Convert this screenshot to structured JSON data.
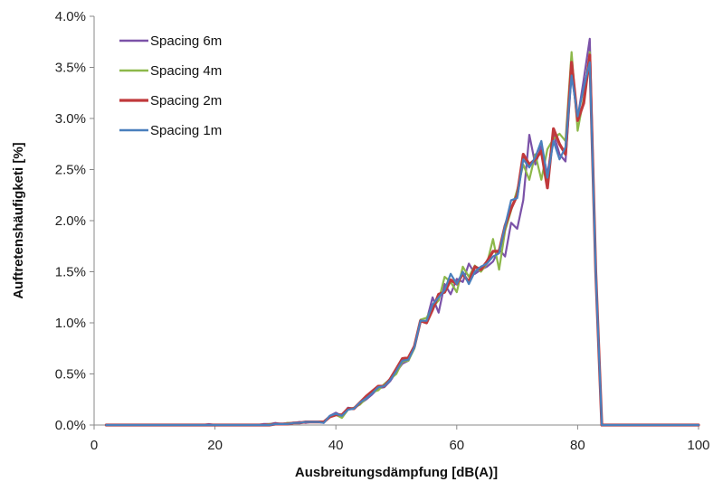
{
  "chart_data": {
    "type": "line",
    "title": "",
    "xlabel": "Ausbreitungsdämpfung [dB(A)]",
    "ylabel": "Auftretenshäufigketi [%]",
    "xlim": [
      0,
      100
    ],
    "ylim": [
      0,
      4.0
    ],
    "x_ticks": [
      0,
      20,
      40,
      60,
      80,
      100
    ],
    "y_ticks": [
      0,
      0.5,
      1.0,
      1.5,
      2.0,
      2.5,
      3.0,
      3.5,
      4.0
    ],
    "y_tick_labels": [
      "0.0%",
      "0.5%",
      "1.0%",
      "1.5%",
      "2.0%",
      "2.5%",
      "3.0%",
      "3.5%",
      "4.0%"
    ],
    "grid": false,
    "legend": "top-left",
    "x": [
      2,
      3,
      4,
      5,
      6,
      7,
      8,
      9,
      10,
      11,
      12,
      13,
      14,
      15,
      16,
      17,
      18,
      19,
      20,
      21,
      22,
      23,
      24,
      25,
      26,
      27,
      28,
      29,
      30,
      31,
      32,
      33,
      34,
      35,
      36,
      37,
      38,
      39,
      40,
      41,
      42,
      43,
      44,
      45,
      46,
      47,
      48,
      49,
      50,
      51,
      52,
      53,
      54,
      55,
      56,
      57,
      58,
      59,
      60,
      61,
      62,
      63,
      64,
      65,
      66,
      67,
      68,
      69,
      70,
      71,
      72,
      73,
      74,
      75,
      76,
      77,
      78,
      79,
      80,
      81,
      82,
      83,
      84,
      85,
      86,
      87,
      88,
      89,
      90,
      91,
      92,
      93,
      94,
      95,
      96,
      97,
      98,
      99,
      100
    ],
    "series": [
      {
        "name": "Spacing 6m",
        "color": "#7b52a8",
        "values": [
          0,
          0,
          0,
          0,
          0,
          0,
          0,
          0,
          0,
          0,
          0,
          0,
          0,
          0,
          0,
          0,
          0,
          0.01,
          0,
          0,
          0,
          0,
          0,
          0,
          0,
          0,
          0.01,
          0.01,
          0.02,
          0.01,
          0.02,
          0.02,
          0.03,
          0.02,
          0.03,
          0.03,
          0.02,
          0.09,
          0.12,
          0.09,
          0.17,
          0.16,
          0.21,
          0.25,
          0.3,
          0.36,
          0.37,
          0.43,
          0.52,
          0.6,
          0.63,
          0.78,
          1.01,
          1.02,
          1.25,
          1.1,
          1.38,
          1.28,
          1.43,
          1.4,
          1.58,
          1.48,
          1.52,
          1.55,
          1.6,
          1.72,
          1.65,
          1.98,
          1.92,
          2.2,
          2.84,
          2.55,
          2.73,
          2.45,
          2.85,
          2.65,
          2.58,
          3.45,
          3.0,
          3.38,
          3.78,
          1.5,
          0,
          0,
          0,
          0,
          0,
          0,
          0,
          0,
          0,
          0,
          0,
          0,
          0,
          0,
          0,
          0,
          0
        ]
      },
      {
        "name": "Spacing 4m",
        "color": "#8db84a",
        "values": [
          0,
          0,
          0,
          0,
          0,
          0,
          0,
          0,
          0,
          0,
          0,
          0,
          0,
          0,
          0,
          0,
          0,
          0,
          0,
          0,
          0,
          0,
          0,
          0,
          0,
          0,
          0,
          0.01,
          0.01,
          0.01,
          0.02,
          0.02,
          0.02,
          0.03,
          0.03,
          0.03,
          0.03,
          0.08,
          0.1,
          0.07,
          0.15,
          0.17,
          0.2,
          0.26,
          0.32,
          0.34,
          0.4,
          0.45,
          0.5,
          0.62,
          0.63,
          0.75,
          1.03,
          1.05,
          1.15,
          1.22,
          1.45,
          1.4,
          1.3,
          1.55,
          1.45,
          1.56,
          1.5,
          1.58,
          1.82,
          1.52,
          1.9,
          2.1,
          2.3,
          2.55,
          2.4,
          2.65,
          2.4,
          2.7,
          2.8,
          2.85,
          2.78,
          3.65,
          2.88,
          3.2,
          3.65,
          1.5,
          0,
          0,
          0,
          0,
          0,
          0,
          0,
          0,
          0,
          0,
          0,
          0,
          0,
          0,
          0,
          0,
          0
        ]
      },
      {
        "name": "Spacing 2m",
        "color": "#c0393b",
        "values": [
          0,
          0,
          0,
          0,
          0,
          0,
          0,
          0,
          0,
          0,
          0,
          0,
          0,
          0,
          0,
          0,
          0,
          0,
          0,
          0,
          0,
          0,
          0,
          0,
          0,
          0,
          0,
          0,
          0.01,
          0.01,
          0.01,
          0.02,
          0.02,
          0.03,
          0.03,
          0.03,
          0.03,
          0.08,
          0.1,
          0.1,
          0.16,
          0.16,
          0.22,
          0.28,
          0.33,
          0.38,
          0.38,
          0.45,
          0.55,
          0.65,
          0.66,
          0.77,
          1.02,
          1.0,
          1.13,
          1.28,
          1.3,
          1.42,
          1.38,
          1.48,
          1.4,
          1.55,
          1.52,
          1.6,
          1.7,
          1.7,
          1.95,
          2.12,
          2.25,
          2.65,
          2.55,
          2.6,
          2.68,
          2.32,
          2.9,
          2.75,
          2.65,
          3.55,
          2.98,
          3.15,
          3.62,
          1.5,
          0,
          0,
          0,
          0,
          0,
          0,
          0,
          0,
          0,
          0,
          0,
          0,
          0,
          0,
          0,
          0,
          0
        ]
      },
      {
        "name": "Spacing 1m",
        "color": "#4a7fbd",
        "values": [
          0,
          0,
          0,
          0,
          0,
          0,
          0,
          0,
          0,
          0,
          0,
          0,
          0,
          0,
          0,
          0,
          0,
          0,
          0,
          0,
          0,
          0,
          0,
          0,
          0,
          0,
          0,
          0,
          0.01,
          0.01,
          0.01,
          0.02,
          0.02,
          0.03,
          0.03,
          0.03,
          0.02,
          0.09,
          0.11,
          0.09,
          0.15,
          0.16,
          0.22,
          0.26,
          0.31,
          0.37,
          0.38,
          0.44,
          0.53,
          0.63,
          0.64,
          0.76,
          1.02,
          1.02,
          1.18,
          1.25,
          1.32,
          1.48,
          1.38,
          1.5,
          1.38,
          1.5,
          1.55,
          1.58,
          1.65,
          1.68,
          1.95,
          2.2,
          2.22,
          2.6,
          2.52,
          2.62,
          2.78,
          2.42,
          2.78,
          2.6,
          2.72,
          3.42,
          3.02,
          3.3,
          3.55,
          1.5,
          0,
          0,
          0,
          0,
          0,
          0,
          0,
          0,
          0,
          0,
          0,
          0,
          0,
          0,
          0,
          0,
          0
        ]
      }
    ]
  }
}
